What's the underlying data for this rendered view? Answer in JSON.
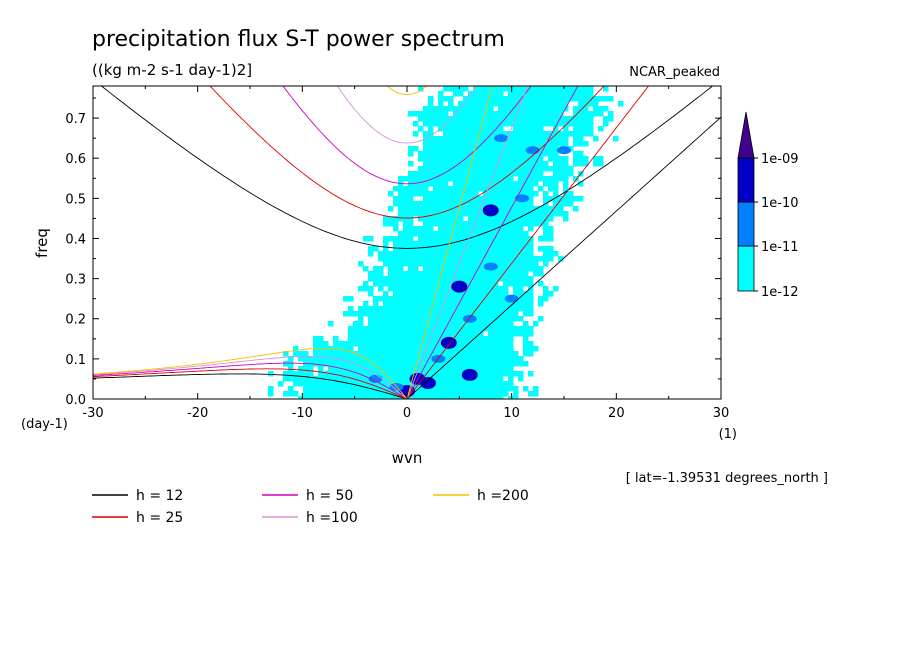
{
  "chart_data": {
    "type": "heatmap",
    "title": "precipitation flux S-T power spectrum",
    "subtitle": "((kg m-2 s-1 day-1)2]",
    "model_label": "NCAR_peaked",
    "xlabel": "wvn",
    "ylabel": "freq",
    "x_units": "(1)",
    "y_units": "(day-1)",
    "xlim": [
      -30,
      30
    ],
    "ylim": [
      0.0,
      0.78
    ],
    "x_ticks": [
      "-30",
      "-20",
      "-10",
      "0",
      "10",
      "20",
      "30"
    ],
    "y_ticks": [
      "0.0",
      "0.1",
      "0.2",
      "0.3",
      "0.4",
      "0.5",
      "0.6",
      "0.7"
    ],
    "grid": false,
    "footnote": "[ lat=-1.39531 degrees_north ]",
    "colorbar": {
      "levels": [
        "1e-12",
        "1e-11",
        "1e-10",
        "1e-09"
      ],
      "colors": [
        "#00ffff",
        "#0080ff",
        "#0000c8",
        "#400090"
      ]
    },
    "dispersion_curves": [
      {
        "name": "h = 12",
        "h": 12,
        "color": "#000000"
      },
      {
        "name": "h = 25",
        "h": 25,
        "color": "#e00000"
      },
      {
        "name": "h = 50",
        "h": 50,
        "color": "#d000c0"
      },
      {
        "name": "h =100",
        "h": 100,
        "color": "#d890d8"
      },
      {
        "name": "h =200",
        "h": 200,
        "color": "#f0c000"
      }
    ],
    "power_regions": [
      {
        "wvn": 0,
        "freq": 0.02,
        "level": 3
      },
      {
        "wvn": 1,
        "freq": 0.05,
        "level": 3
      },
      {
        "wvn": 2,
        "freq": 0.04,
        "level": 3
      },
      {
        "wvn": 6,
        "freq": 0.06,
        "level": 3
      },
      {
        "wvn": 4,
        "freq": 0.14,
        "level": 3
      },
      {
        "wvn": 5,
        "freq": 0.28,
        "level": 3
      },
      {
        "wvn": 8,
        "freq": 0.47,
        "level": 3
      },
      {
        "wvn": -1,
        "freq": 0.03,
        "level": 2
      },
      {
        "wvn": 3,
        "freq": 0.1,
        "level": 2
      },
      {
        "wvn": 6,
        "freq": 0.2,
        "level": 2
      },
      {
        "wvn": 8,
        "freq": 0.33,
        "level": 2
      },
      {
        "wvn": 10,
        "freq": 0.25,
        "level": 2
      },
      {
        "wvn": 11,
        "freq": 0.5,
        "level": 2
      },
      {
        "wvn": 12,
        "freq": 0.62,
        "level": 2
      },
      {
        "wvn": 15,
        "freq": 0.62,
        "level": 2
      },
      {
        "wvn": 9,
        "freq": 0.65,
        "level": 2
      },
      {
        "wvn": -3,
        "freq": 0.05,
        "level": 2
      }
    ]
  }
}
